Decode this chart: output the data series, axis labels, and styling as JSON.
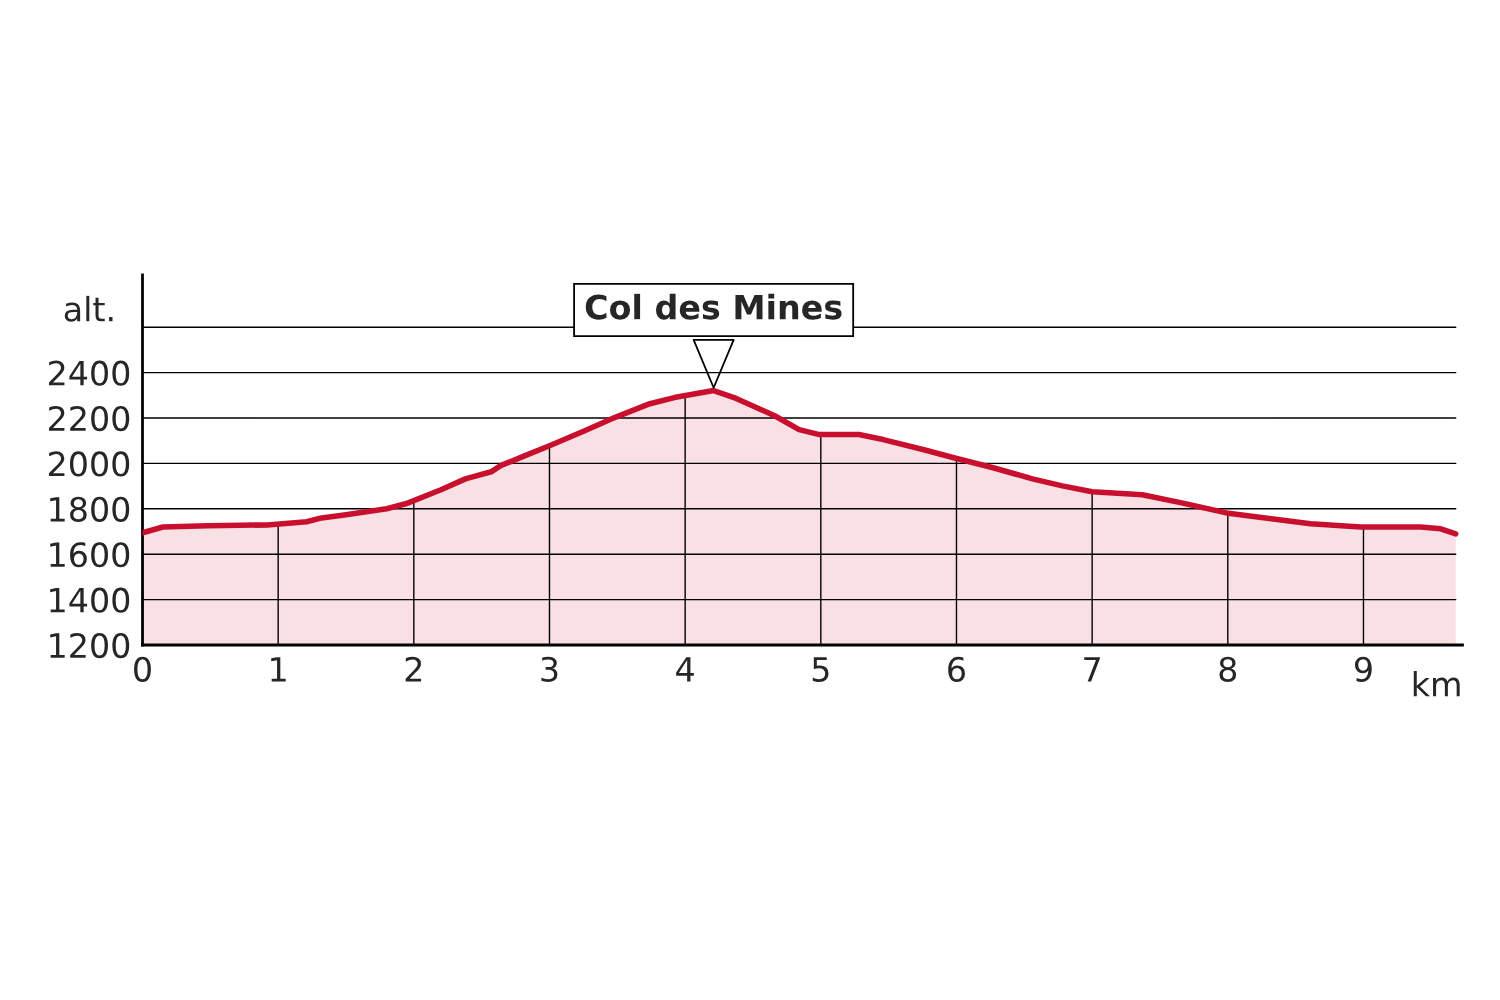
{
  "chart_data": {
    "type": "area",
    "xlabel": "km",
    "ylabel": "alt.",
    "x": [
      0,
      0.15,
      0.48,
      0.92,
      1.21,
      1.32,
      1.5,
      1.8,
      1.94,
      2.2,
      2.38,
      2.57,
      2.64,
      2.82,
      3.0,
      3.26,
      3.48,
      3.74,
      3.92,
      4.21,
      4.36,
      4.66,
      4.84,
      4.99,
      5.13,
      5.28,
      5.46,
      5.76,
      5.98,
      6.27,
      6.56,
      6.78,
      7.0,
      7.37,
      7.66,
      7.99,
      8.32,
      8.61,
      8.98,
      9.42,
      9.57,
      9.68
    ],
    "series": [
      {
        "color": "#c8102e",
        "values": [
          1694,
          1720,
          1725,
          1729,
          1743,
          1760,
          1774,
          1800,
          1822,
          1884,
          1932,
          1963,
          1990,
          2034,
          2078,
          2144,
          2202,
          2263,
          2290,
          2321,
          2290,
          2210,
          2149,
          2127,
          2127,
          2127,
          2105,
          2060,
          2025,
          1981,
          1932,
          1901,
          1875,
          1862,
          1826,
          1782,
          1756,
          1734,
          1720,
          1720,
          1712,
          1690
        ]
      }
    ],
    "annotations": [
      {
        "text": "Col des Mines",
        "x": 4.21,
        "y": 2321
      }
    ],
    "xlim": [
      0,
      9.73
    ],
    "xticks": [
      0,
      1,
      2,
      3,
      4,
      5,
      6,
      7,
      8,
      9
    ],
    "ylim": [
      1200,
      2830
    ],
    "yticks": [
      1200,
      1400,
      1600,
      1800,
      2000,
      2200,
      2400,
      {
        "value": 2600,
        "label": null
      }
    ],
    "grid": true,
    "legend": false
  }
}
